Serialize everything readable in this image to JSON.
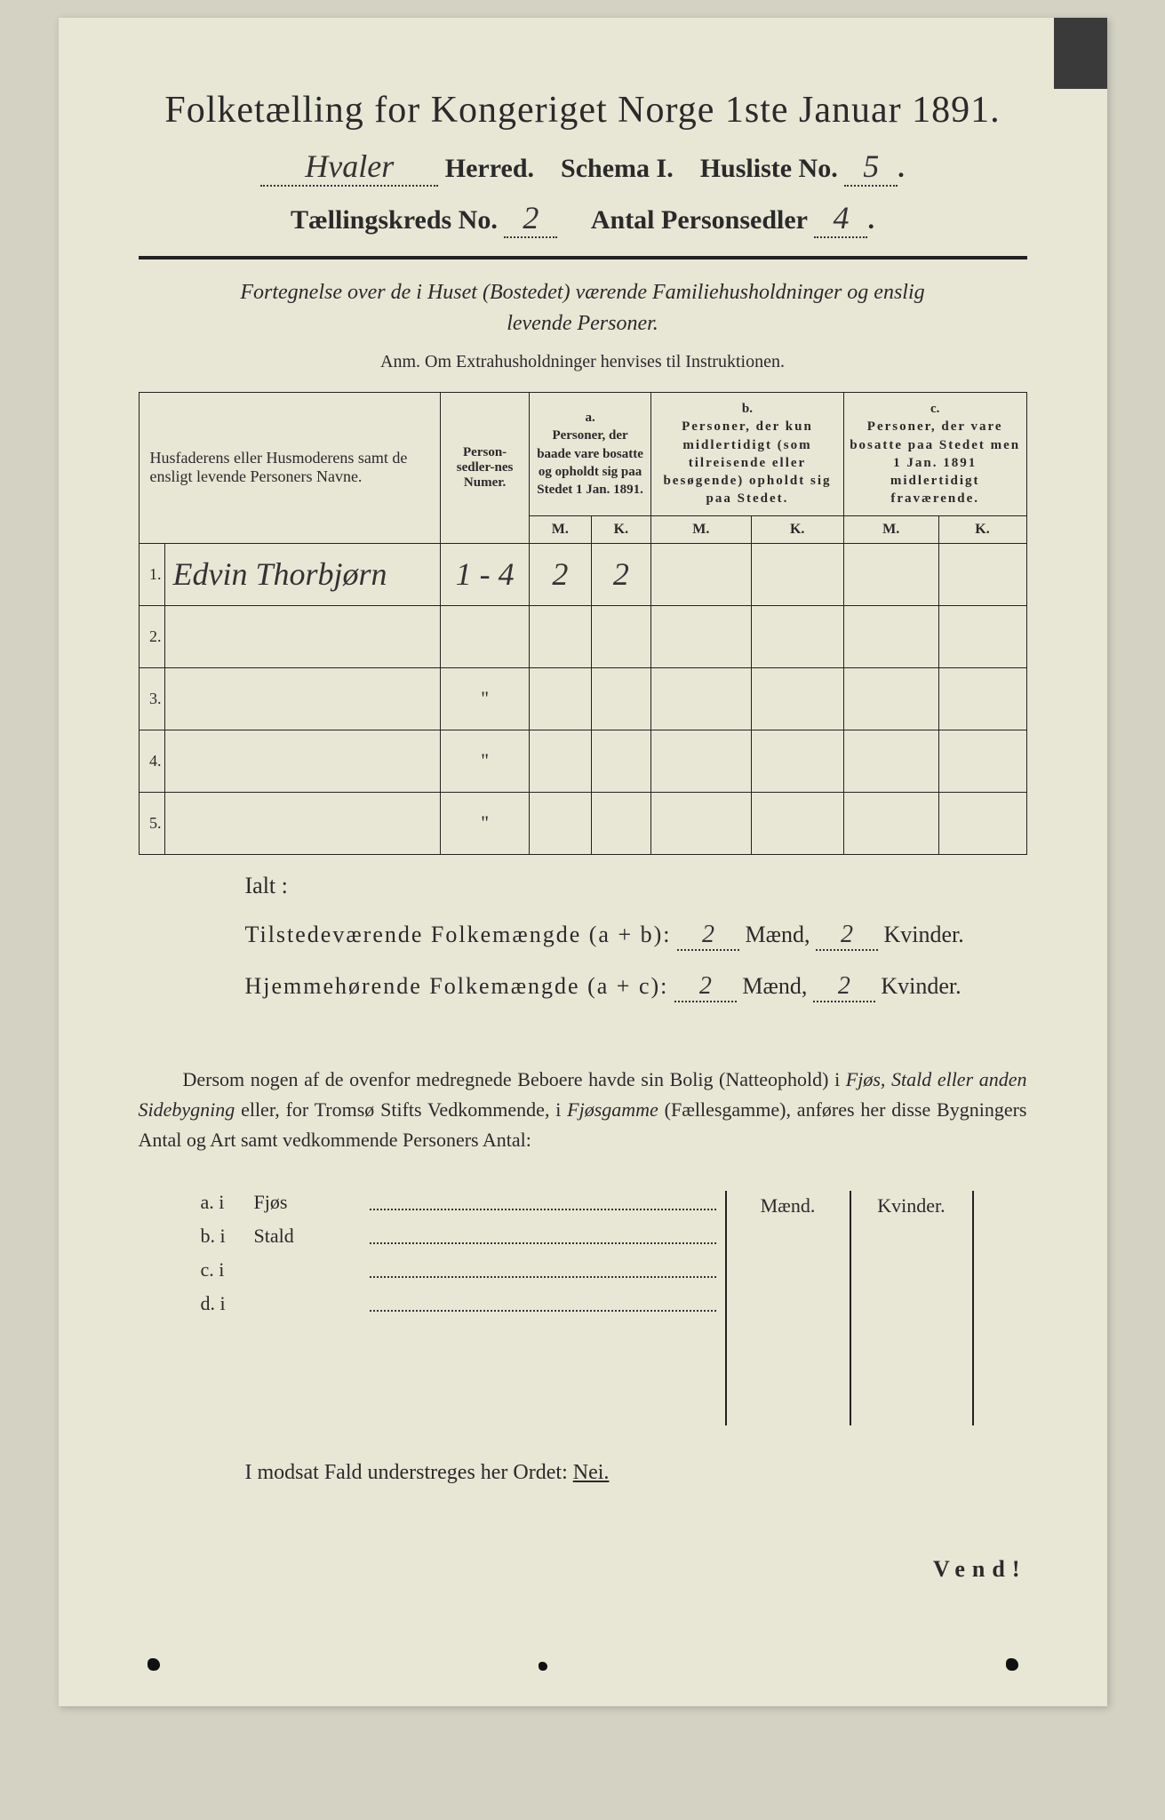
{
  "title": "Folketælling for Kongeriget Norge 1ste Januar 1891.",
  "herred_value": "Hvaler",
  "herred_label": "Herred.",
  "schema_label": "Schema I.",
  "husliste_label": "Husliste No.",
  "husliste_value": "5",
  "kreds_label": "Tællingskreds No.",
  "kreds_value": "2",
  "antal_label": "Antal Personsedler",
  "antal_value": "4",
  "subtitle1": "Fortegnelse over de i Huset (Bostedet) værende Familiehusholdninger og enslig",
  "subtitle2": "levende Personer.",
  "anm": "Anm.  Om Extrahusholdninger henvises til Instruktionen.",
  "columns": {
    "names": "Husfaderens eller Husmoderens samt de ensligt levende Personers Navne.",
    "numer": "Person-sedler-nes Numer.",
    "a_label": "a.",
    "a_text": "Personer, der baade vare bosatte og opholdt sig paa Stedet 1 Jan. 1891.",
    "b_label": "b.",
    "b_text": "Personer, der kun midlertidigt (som tilreisende eller besøgende) opholdt sig paa Stedet.",
    "c_label": "c.",
    "c_text": "Personer, der vare bosatte paa Stedet men 1 Jan. 1891 midlertidigt fraværende.",
    "m": "M.",
    "k": "K."
  },
  "rows": [
    {
      "n": "1.",
      "name": "Edvin Thorbjørn",
      "numer": "1 - 4",
      "am": "2",
      "ak": "2",
      "bm": "",
      "bk": "",
      "cm": "",
      "ck": ""
    },
    {
      "n": "2.",
      "name": "",
      "numer": "",
      "am": "",
      "ak": "",
      "bm": "",
      "bk": "",
      "cm": "",
      "ck": ""
    },
    {
      "n": "3.",
      "name": "",
      "numer": "\"",
      "am": "",
      "ak": "",
      "bm": "",
      "bk": "",
      "cm": "",
      "ck": ""
    },
    {
      "n": "4.",
      "name": "",
      "numer": "\"",
      "am": "",
      "ak": "",
      "bm": "",
      "bk": "",
      "cm": "",
      "ck": ""
    },
    {
      "n": "5.",
      "name": "",
      "numer": "\"",
      "am": "",
      "ak": "",
      "bm": "",
      "bk": "",
      "cm": "",
      "ck": ""
    }
  ],
  "ialt": "Ialt :",
  "summary": {
    "line1_label": "Tilstedeværende Folkemængde (a + b):",
    "line1_m": "2",
    "line1_m_unit": "Mænd,",
    "line1_k": "2",
    "line1_k_unit": "Kvinder.",
    "line2_label": "Hjemmehørende Folkemængde (a + c):",
    "line2_m": "2",
    "line2_m_unit": "Mænd,",
    "line2_k": "2",
    "line2_k_unit": "Kvinder."
  },
  "paragraph": "Dersom nogen af de ovenfor medregnede Beboere havde sin Bolig (Natteophold) i Fjøs, Stald eller anden Sidebygning eller, for Tromsø Stifts Vedkommende, i Fjøsgamme (Fællesgamme), anføres her disse Bygningers Antal og Art samt vedkommende Personers Antal:",
  "mk_header": {
    "m": "Mænd.",
    "k": "Kvinder."
  },
  "buildings": [
    {
      "lbl": "a.  i",
      "kind": "Fjøs"
    },
    {
      "lbl": "b.  i",
      "kind": "Stald"
    },
    {
      "lbl": "c.  i",
      "kind": ""
    },
    {
      "lbl": "d.  i",
      "kind": ""
    }
  ],
  "nei_line": "I modsat Fald understreges her Ordet: ",
  "nei_word": "Nei.",
  "vend": "Vend!",
  "colors": {
    "paper": "#e8e6d5",
    "ink": "#2a2a2a",
    "background": "#d3d2c3"
  }
}
